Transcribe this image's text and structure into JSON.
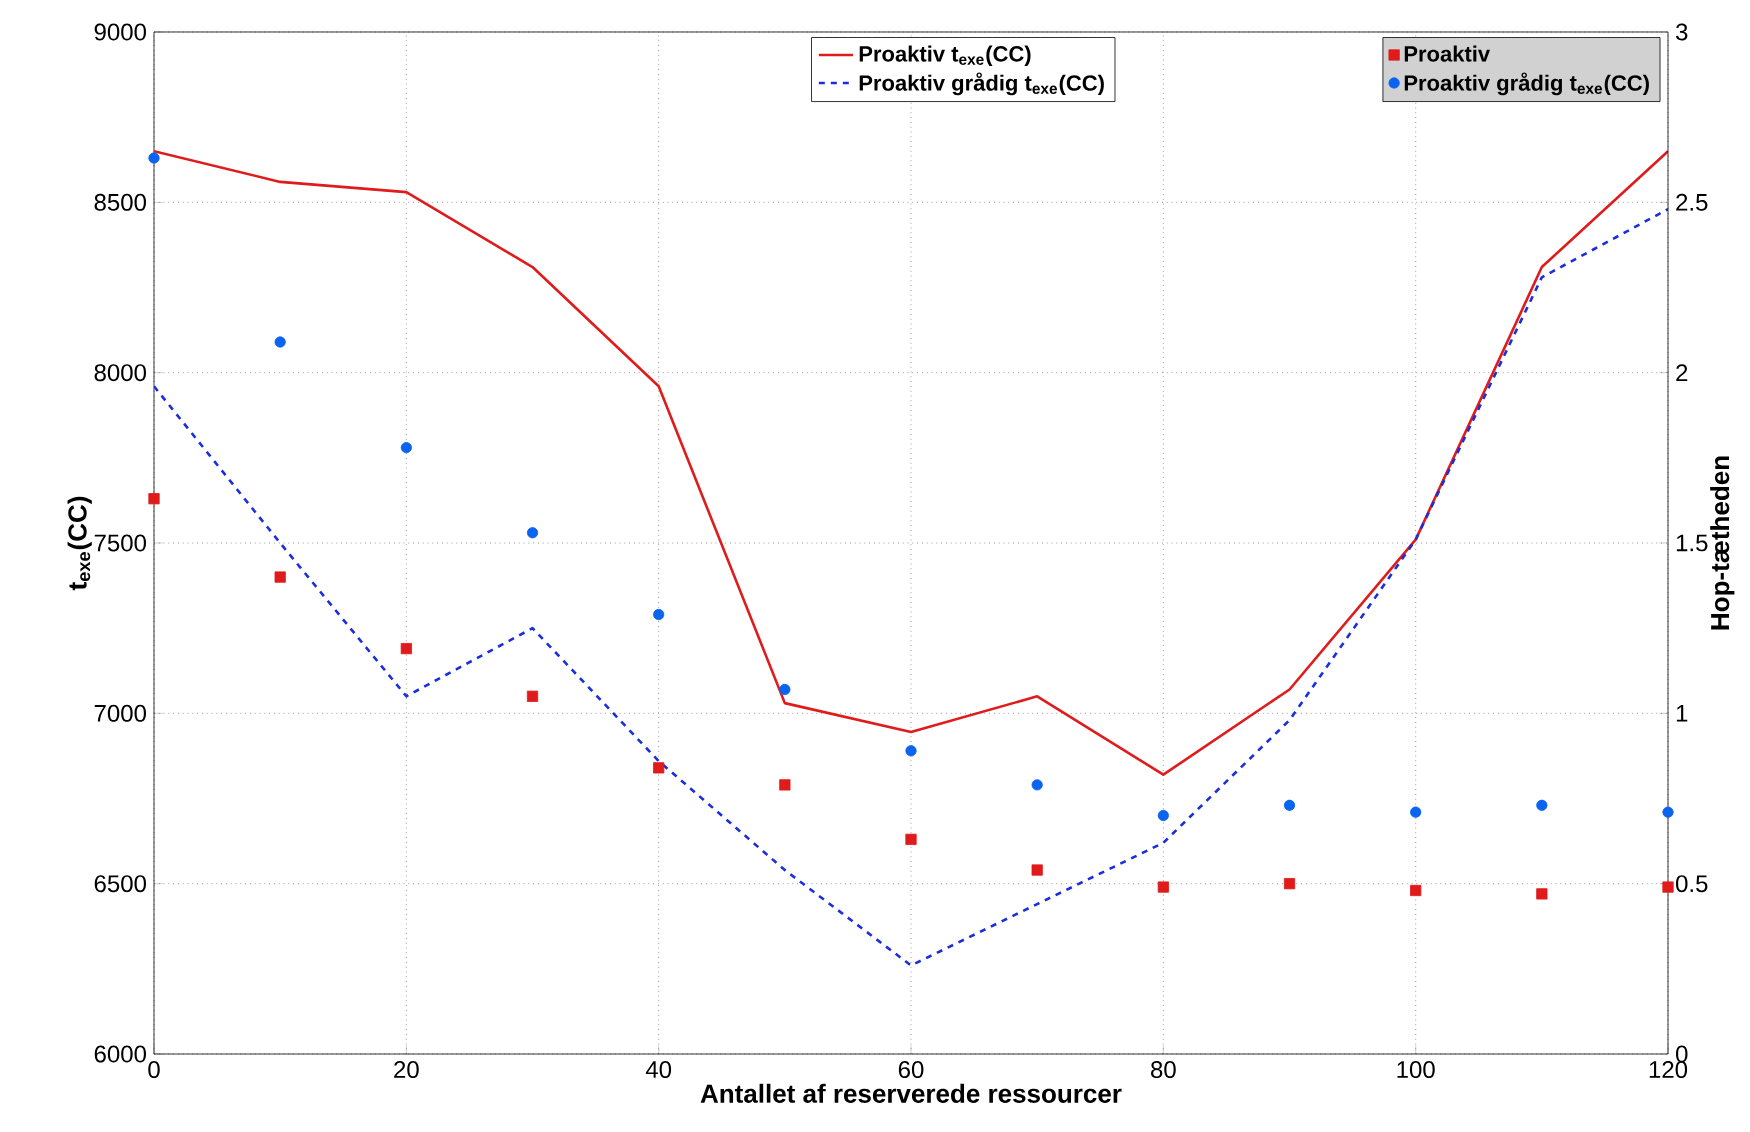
{
  "chart_data": {
    "type": "line",
    "xlabel": "Antallet af reserverede ressourcer",
    "ylabel": "t$_{exe}$(CC)",
    "y2label": "Hop-tætheden",
    "x": [
      0,
      10,
      20,
      30,
      40,
      50,
      60,
      70,
      80,
      90,
      100,
      110,
      120
    ],
    "xlim": [
      0,
      120
    ],
    "xticks": [
      0,
      20,
      40,
      60,
      80,
      100,
      120
    ],
    "ylim": [
      6000,
      9000
    ],
    "yticks": [
      6000,
      6500,
      7000,
      7500,
      8000,
      8500,
      9000
    ],
    "y2lim": [
      0,
      3
    ],
    "y2ticks": [
      0,
      0.5,
      1,
      1.5,
      2,
      2.5,
      3
    ],
    "grid": true,
    "legend": "top right",
    "series": [
      {
        "name": "Proaktiv t$_{exe}$(CC)",
        "color": "#e01b1b",
        "line_style": "solid",
        "marker": "none",
        "values": [
          8650,
          8560,
          8530,
          8310,
          7960,
          7030,
          6945,
          7050,
          6820,
          7070,
          7510,
          8310,
          8650
        ]
      },
      {
        "name": "Proaktiv grådig t$_{exe}$(CC)",
        "color": "#1a2ee0",
        "line_style": "dashed",
        "marker": "none",
        "values": [
          7960,
          7500,
          7050,
          7250,
          6860,
          6540,
          6260,
          6440,
          6620,
          6980,
          7510,
          8280,
          8480
        ]
      },
      {
        "name": "Proaktiv",
        "type": "scatter",
        "axis": "y2",
        "color": "#e01b1b",
        "marker": "square",
        "values": [
          1.63,
          1.4,
          1.19,
          1.05,
          0.84,
          0.79,
          0.63,
          0.54,
          0.49,
          0.5,
          0.48,
          0.47,
          0.49
        ]
      },
      {
        "name": "Proaktiv grådig t$_{exe}$(CC)",
        "type": "scatter",
        "axis": "y2",
        "color": "#0a64f0",
        "marker": "circle",
        "values": [
          2.63,
          2.09,
          1.78,
          1.53,
          1.29,
          1.07,
          0.89,
          0.79,
          0.7,
          0.73,
          0.71,
          0.73,
          0.71
        ]
      }
    ]
  }
}
